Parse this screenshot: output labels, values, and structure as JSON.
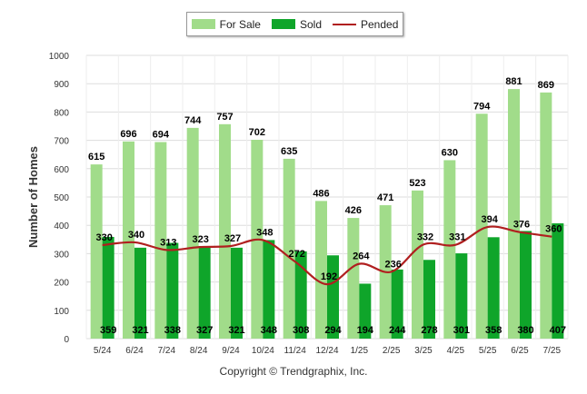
{
  "legend": {
    "for_sale": "For Sale",
    "sold": "Sold",
    "pended": "Pended"
  },
  "copyright": "Copyright © Trendgraphix, Inc.",
  "colors": {
    "for_sale": "#a1dc8a",
    "sold": "#0fa52a",
    "pended": "#b01f1f",
    "grid": "#dddddd"
  },
  "chart_data": {
    "type": "bar",
    "ylabel": "Number of Homes",
    "ylim": [
      0,
      1000
    ],
    "yticks": [
      0,
      100,
      200,
      300,
      400,
      500,
      600,
      700,
      800,
      900,
      1000
    ],
    "categories": [
      "5/24",
      "6/24",
      "7/24",
      "8/24",
      "9/24",
      "10/24",
      "11/24",
      "12/24",
      "1/25",
      "2/25",
      "3/25",
      "4/25",
      "5/25",
      "6/25",
      "7/25"
    ],
    "series": [
      {
        "name": "For Sale",
        "type": "bar",
        "values": [
          615,
          696,
          694,
          744,
          757,
          702,
          635,
          486,
          426,
          471,
          523,
          630,
          794,
          881,
          869
        ]
      },
      {
        "name": "Sold",
        "type": "bar",
        "values": [
          359,
          321,
          338,
          327,
          321,
          348,
          308,
          294,
          194,
          244,
          278,
          301,
          358,
          380,
          407
        ]
      },
      {
        "name": "Pended",
        "type": "line",
        "values": [
          330,
          340,
          313,
          323,
          327,
          348,
          272,
          192,
          264,
          236,
          332,
          331,
          394,
          376,
          360
        ]
      }
    ],
    "grid": true,
    "legend_position": "top-center"
  }
}
